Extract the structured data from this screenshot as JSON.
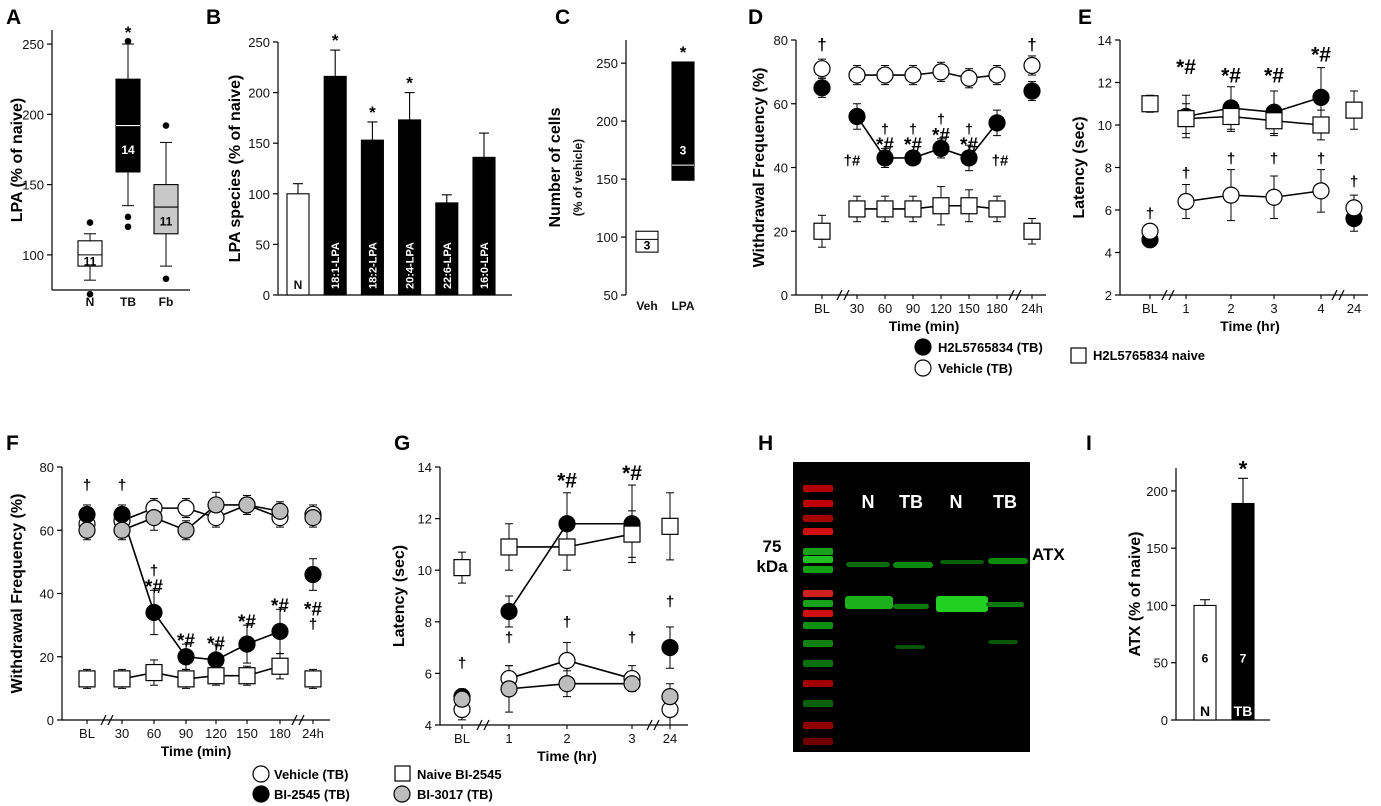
{
  "panels": {
    "A": "A",
    "B": "B",
    "C": "C",
    "D": "D",
    "E": "E",
    "F": "F",
    "G": "G",
    "H": "H",
    "I": "I"
  },
  "chart_data": [
    {
      "panel": "A",
      "type": "box",
      "ylabel": "LPA (% of naive)",
      "ylim": [
        75,
        260
      ],
      "yticks": [
        100,
        150,
        200,
        250
      ],
      "categories": [
        "N",
        "TB",
        "Fb"
      ],
      "boxes": [
        {
          "category": "N",
          "q1": 92,
          "median": 100,
          "q3": 110,
          "whisker_low": 82,
          "whisker_high": 115,
          "outliers": [
            123,
            72
          ],
          "n": "11",
          "fill": "#ffffff",
          "sig": ""
        },
        {
          "category": "TB",
          "q1": 159,
          "median": 192,
          "q3": 225,
          "whisker_low": 135,
          "whisker_high": 250,
          "outliers": [
            252,
            127,
            120
          ],
          "n": "14",
          "fill": "#000000",
          "sig": "*"
        },
        {
          "category": "Fb",
          "q1": 115,
          "median": 134,
          "q3": 150,
          "whisker_low": 92,
          "whisker_high": 180,
          "outliers": [
            192,
            83
          ],
          "n": "11",
          "fill": "#c8c8c8",
          "sig": ""
        }
      ]
    },
    {
      "panel": "B",
      "type": "bar",
      "ylabel": "LPA species (% of naive)",
      "ylim": [
        0,
        250
      ],
      "yticks": [
        0,
        50,
        100,
        150,
        200,
        250
      ],
      "categories": [
        "N",
        "18:1-LPA",
        "18:2-LPA",
        "20:4-LPA",
        "22:6-LPA",
        "16:0-LPA"
      ],
      "values": [
        100,
        216,
        153,
        173,
        91,
        136
      ],
      "errors": [
        10,
        26,
        18,
        27,
        8,
        24
      ],
      "fills": [
        "#ffffff",
        "#000000",
        "#000000",
        "#000000",
        "#000000",
        "#000000"
      ],
      "sig": [
        "",
        "*",
        "*",
        "*",
        "",
        ""
      ]
    },
    {
      "panel": "C",
      "type": "floating-bar",
      "ylabel": "Number of cells",
      "ylabel2": "(% of vehicle)",
      "ylim": [
        50,
        270
      ],
      "yticks": [
        50,
        100,
        150,
        200,
        250
      ],
      "categories": [
        "Veh",
        "LPA"
      ],
      "bars": [
        {
          "low": 87,
          "high": 105,
          "mid": 98,
          "n": "3",
          "fill": "#ffffff",
          "sig": ""
        },
        {
          "low": 149,
          "high": 251,
          "mid": 162,
          "n": "3",
          "fill": "#000000",
          "sig": "*"
        }
      ]
    },
    {
      "panel": "D",
      "type": "line",
      "ylabel": "Withdrawal Frequency (%)",
      "xlabel": "Time (min)",
      "ylim": [
        0,
        80
      ],
      "yticks": [
        0,
        20,
        40,
        60,
        80
      ],
      "xtick_labels": [
        "BL",
        "30",
        "60",
        "90",
        "120",
        "150",
        "180",
        "24h"
      ],
      "series": [
        {
          "name": "H2L5765834 (TB)",
          "marker": "circle",
          "fill": "#000000",
          "values": [
            65,
            56,
            43,
            43,
            46,
            43,
            54,
            64
          ],
          "errors": [
            3,
            4,
            3,
            2,
            3,
            4,
            4,
            3
          ]
        },
        {
          "name": "Vehicle (TB)",
          "marker": "circle",
          "fill": "#ffffff",
          "values": [
            71,
            69,
            69,
            69,
            70,
            68,
            69,
            72
          ],
          "errors": [
            3,
            3,
            3,
            3,
            3,
            3,
            3,
            3
          ]
        },
        {
          "name": "H2L5765834 naive",
          "marker": "square",
          "fill": "#ffffff",
          "values": [
            20,
            27,
            27,
            27,
            28,
            28,
            27,
            20
          ],
          "errors": [
            5,
            4,
            4,
            4,
            6,
            5,
            4,
            4
          ]
        }
      ],
      "annotations": [
        "†",
        "†#",
        "†",
        "*#",
        "†",
        "*#",
        "†",
        "*#",
        "†",
        "*#",
        "†#",
        "†"
      ]
    },
    {
      "panel": "E",
      "type": "line",
      "ylabel": "Latency (sec)",
      "xlabel": "Time (hr)",
      "ylim": [
        2,
        14
      ],
      "yticks": [
        2,
        4,
        6,
        8,
        10,
        12,
        14
      ],
      "xtick_labels": [
        "BL",
        "1",
        "2",
        "3",
        "4",
        "24"
      ],
      "series": [
        {
          "name": "H2L5765834 (TB)",
          "marker": "circle",
          "fill": "#000000",
          "values": [
            4.6,
            10.4,
            10.8,
            10.6,
            11.3,
            5.6
          ],
          "errors": [
            0.3,
            1.0,
            1.0,
            1.0,
            1.4,
            0.6
          ]
        },
        {
          "name": "Vehicle (TB)",
          "marker": "circle",
          "fill": "#ffffff",
          "values": [
            5.0,
            6.4,
            6.7,
            6.6,
            6.9,
            6.1
          ],
          "errors": [
            0.3,
            0.8,
            1.2,
            1.0,
            1.0,
            0.6
          ]
        },
        {
          "name": "H2L5765834 naive",
          "marker": "square",
          "fill": "#ffffff",
          "values": [
            11.0,
            10.3,
            10.4,
            10.2,
            10.0,
            10.7
          ],
          "errors": [
            0.4,
            0.7,
            0.7,
            0.7,
            0.7,
            0.9
          ]
        }
      ],
      "annotations": [
        "*#",
        "*#",
        "*#",
        "*#",
        "†",
        "†",
        "†",
        "†",
        "†",
        "†"
      ]
    },
    {
      "panel": "F",
      "type": "line",
      "ylabel": "Withdrawal Frequency (%)",
      "xlabel": "Time (min)",
      "ylim": [
        0,
        80
      ],
      "yticks": [
        0,
        20,
        40,
        60,
        80
      ],
      "xtick_labels": [
        "BL",
        "30",
        "60",
        "90",
        "120",
        "150",
        "180",
        "24h"
      ],
      "series": [
        {
          "name": "Vehicle (TB)",
          "marker": "circle",
          "fill": "#ffffff",
          "values": [
            62,
            63,
            67,
            67,
            64,
            68,
            64,
            65
          ],
          "errors": [
            3,
            3,
            3,
            3,
            3,
            3,
            3,
            3
          ]
        },
        {
          "name": "BI-2545 (TB)",
          "marker": "circle",
          "fill": "#000000",
          "values": [
            65,
            65,
            34,
            20,
            19,
            24,
            28,
            46
          ],
          "errors": [
            3,
            3,
            7,
            4,
            5,
            6,
            7,
            5
          ]
        },
        {
          "name": "Naive BI-2545",
          "marker": "square",
          "fill": "#ffffff",
          "values": [
            13,
            13,
            15,
            13,
            14,
            14,
            17,
            13
          ],
          "errors": [
            3,
            3,
            4,
            3,
            3,
            3,
            4,
            3
          ]
        },
        {
          "name": "BI-3017 (TB)",
          "marker": "circle",
          "fill": "#bdbdbd",
          "values": [
            60,
            60,
            64,
            60,
            68,
            68,
            66,
            64
          ],
          "errors": [
            3,
            3,
            4,
            3,
            4,
            3,
            3,
            3
          ]
        }
      ],
      "annotations": [
        "†",
        "†",
        "†",
        "*#",
        "*#",
        "*#",
        "*#",
        "*#",
        "*#",
        "†"
      ]
    },
    {
      "panel": "G",
      "type": "line",
      "ylabel": "Latency (sec)",
      "xlabel": "Time (hr)",
      "ylim": [
        4,
        14
      ],
      "yticks": [
        4,
        6,
        8,
        10,
        12,
        14
      ],
      "xtick_labels": [
        "BL",
        "1",
        "2",
        "3",
        "24"
      ],
      "series": [
        {
          "name": "Vehicle (TB)",
          "marker": "circle",
          "fill": "#ffffff",
          "values": [
            4.6,
            5.8,
            6.5,
            5.8,
            4.6
          ],
          "errors": [
            0.4,
            0.5,
            0.7,
            0.5,
            0.6
          ]
        },
        {
          "name": "BI-2545 (TB)",
          "marker": "circle",
          "fill": "#000000",
          "values": [
            5.1,
            8.4,
            11.8,
            11.8,
            7.0
          ],
          "errors": [
            0.3,
            0.6,
            1.2,
            1.5,
            0.8
          ]
        },
        {
          "name": "Naive BI-2545",
          "marker": "square",
          "fill": "#ffffff",
          "values": [
            10.1,
            10.9,
            10.9,
            11.4,
            11.7
          ],
          "errors": [
            0.6,
            0.9,
            0.9,
            0.9,
            1.3
          ]
        },
        {
          "name": "BI-3017 (TB)",
          "marker": "circle",
          "fill": "#bdbdbd",
          "values": [
            5.0,
            5.4,
            5.6,
            5.6,
            5.1
          ],
          "errors": [
            0.3,
            0.9,
            0.5,
            0.3,
            0.5
          ]
        }
      ],
      "annotations": [
        "†",
        "†",
        "†",
        "†",
        "†",
        "*#",
        "*#"
      ]
    },
    {
      "panel": "I",
      "type": "bar",
      "ylabel": "ATX (% of naive)",
      "ylim": [
        0,
        220
      ],
      "yticks": [
        0,
        50,
        100,
        150,
        200
      ],
      "categories": [
        "N",
        "TB"
      ],
      "values": [
        100,
        189
      ],
      "errors": [
        5,
        22
      ],
      "n": [
        "6",
        "7"
      ],
      "fills": [
        "#ffffff",
        "#000000"
      ],
      "sig": [
        "",
        "*"
      ]
    }
  ],
  "blot": {
    "lane_labels": [
      "N",
      "TB",
      "N",
      "TB"
    ],
    "marker_label_1": "75",
    "marker_label_2": "kDa",
    "band_label": "ATX"
  },
  "legends": {
    "d_black": "H2L5765834 (TB)",
    "d_white": "Vehicle (TB)",
    "d_square": "H2L5765834 naive",
    "f_white": "Vehicle (TB)",
    "f_black": "BI-2545 (TB)",
    "f_square": "Naive BI-2545",
    "f_gray": "BI-3017 (TB)"
  }
}
